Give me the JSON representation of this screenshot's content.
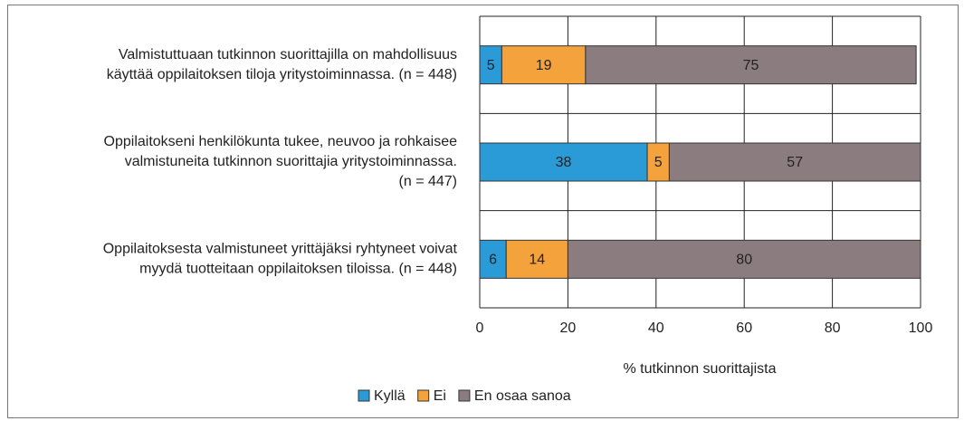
{
  "chart_data": {
    "type": "stacked-barh",
    "categories": [
      [
        "Valmistuttuaan tutkinnon suorittajilla on mahdollisuus",
        "käyttää oppilaitoksen tiloja yritystoiminnassa. (n = 448)"
      ],
      [
        "Oppilaitokseni henkilökunta tukee, neuvoo ja rohkaisee",
        "valmistuneita tutkinnon suorittajia yritystoiminnassa.",
        "(n = 447)"
      ],
      [
        "Oppilaitoksesta valmistuneet yrittäjäksi ryhtyneet voivat",
        "myydä tuotteitaan oppilaitoksen tiloissa. (n = 448)"
      ]
    ],
    "series": [
      {
        "name": "Kyllä",
        "color": "#2b9bd8",
        "values": [
          5,
          38,
          6
        ]
      },
      {
        "name": "Ei",
        "color": "#f4a23c",
        "values": [
          19,
          5,
          14
        ]
      },
      {
        "name": "En osaa sanoa",
        "color": "#8a7c7f",
        "values": [
          75,
          57,
          80
        ]
      }
    ],
    "xlabel": "% tutkinnon suorittajista",
    "xlim": [
      0,
      100
    ],
    "xticks": [
      0,
      20,
      40,
      60,
      80,
      100
    ],
    "grid": true
  }
}
